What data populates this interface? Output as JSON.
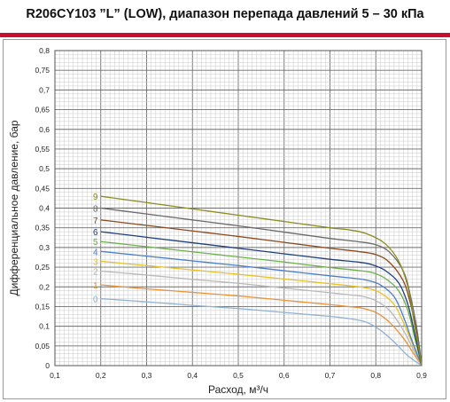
{
  "header": {
    "title": "R206CY103 ”L” (LOW), диапазон перепада давлений 5 – 30 кПа",
    "accent_color": "#c8102e"
  },
  "chart_data": {
    "type": "line",
    "title": "R206CY103 ”L” (LOW), диапазон перепада давлений 5 – 30 кПа",
    "xlabel": "Расход, м³/ч",
    "ylabel": "Дифференциальное давление, бар",
    "xlim": [
      0.1,
      0.9
    ],
    "ylim": [
      0,
      0.8
    ],
    "x_ticks": [
      "0,1",
      "0,2",
      "0,3",
      "0,4",
      "0,5",
      "0,6",
      "0,7",
      "0,8",
      "0,9"
    ],
    "y_ticks": [
      "0",
      "0,05",
      "0,1",
      "0,15",
      "0,2",
      "0,25",
      "0,3",
      "0,35",
      "0,4",
      "0,45",
      "0,5",
      "0,55",
      "0,6",
      "0,65",
      "0,7",
      "0,75",
      "0,8"
    ],
    "grid": true,
    "series": [
      {
        "name": "0",
        "color": "#8fb2d4",
        "x": [
          0.2,
          0.3,
          0.4,
          0.5,
          0.6,
          0.7,
          0.73,
          0.75,
          0.78,
          0.81,
          0.84,
          0.87,
          0.9
        ],
        "y": [
          0.17,
          0.162,
          0.153,
          0.145,
          0.135,
          0.125,
          0.121,
          0.118,
          0.11,
          0.09,
          0.06,
          0.025,
          0
        ]
      },
      {
        "name": "1",
        "color": "#e8923a",
        "x": [
          0.2,
          0.3,
          0.4,
          0.5,
          0.6,
          0.7,
          0.74,
          0.77,
          0.8,
          0.83,
          0.86,
          0.88,
          0.9
        ],
        "y": [
          0.205,
          0.195,
          0.186,
          0.177,
          0.166,
          0.155,
          0.15,
          0.146,
          0.135,
          0.11,
          0.07,
          0.035,
          0
        ]
      },
      {
        "name": "2",
        "color": "#b8b8b8",
        "x": [
          0.2,
          0.3,
          0.4,
          0.5,
          0.6,
          0.7,
          0.74,
          0.77,
          0.8,
          0.83,
          0.86,
          0.88,
          0.9
        ],
        "y": [
          0.24,
          0.23,
          0.219,
          0.209,
          0.197,
          0.185,
          0.18,
          0.176,
          0.165,
          0.14,
          0.09,
          0.045,
          0
        ]
      },
      {
        "name": "3",
        "color": "#e8c12a",
        "x": [
          0.2,
          0.3,
          0.4,
          0.5,
          0.6,
          0.7,
          0.75,
          0.78,
          0.81,
          0.84,
          0.86,
          0.88,
          0.9
        ],
        "y": [
          0.265,
          0.254,
          0.243,
          0.232,
          0.22,
          0.208,
          0.202,
          0.197,
          0.185,
          0.155,
          0.11,
          0.055,
          0
        ]
      },
      {
        "name": "4",
        "color": "#4a7ec9",
        "x": [
          0.2,
          0.3,
          0.4,
          0.5,
          0.6,
          0.7,
          0.75,
          0.78,
          0.81,
          0.84,
          0.86,
          0.88,
          0.9
        ],
        "y": [
          0.29,
          0.278,
          0.266,
          0.254,
          0.241,
          0.228,
          0.222,
          0.217,
          0.205,
          0.175,
          0.125,
          0.06,
          0
        ]
      },
      {
        "name": "5",
        "color": "#6cb04a",
        "x": [
          0.2,
          0.3,
          0.4,
          0.5,
          0.6,
          0.7,
          0.75,
          0.79,
          0.82,
          0.85,
          0.87,
          0.885,
          0.9
        ],
        "y": [
          0.315,
          0.302,
          0.289,
          0.276,
          0.263,
          0.249,
          0.243,
          0.237,
          0.222,
          0.19,
          0.14,
          0.07,
          0
        ]
      },
      {
        "name": "6",
        "color": "#1f3f7a",
        "x": [
          0.2,
          0.3,
          0.4,
          0.5,
          0.6,
          0.7,
          0.76,
          0.79,
          0.82,
          0.85,
          0.87,
          0.885,
          0.9
        ],
        "y": [
          0.34,
          0.326,
          0.312,
          0.298,
          0.284,
          0.27,
          0.263,
          0.257,
          0.242,
          0.21,
          0.155,
          0.08,
          0
        ]
      },
      {
        "name": "7",
        "color": "#8b4a20",
        "x": [
          0.2,
          0.3,
          0.4,
          0.5,
          0.6,
          0.7,
          0.76,
          0.8,
          0.83,
          0.86,
          0.875,
          0.89,
          0.9
        ],
        "y": [
          0.37,
          0.356,
          0.342,
          0.328,
          0.313,
          0.298,
          0.29,
          0.282,
          0.262,
          0.215,
          0.16,
          0.08,
          0
        ]
      },
      {
        "name": "8",
        "color": "#6b6b6b",
        "x": [
          0.2,
          0.3,
          0.4,
          0.5,
          0.6,
          0.7,
          0.76,
          0.8,
          0.83,
          0.86,
          0.875,
          0.89,
          0.9
        ],
        "y": [
          0.4,
          0.385,
          0.37,
          0.355,
          0.339,
          0.323,
          0.315,
          0.307,
          0.288,
          0.24,
          0.18,
          0.09,
          0
        ]
      },
      {
        "name": "9",
        "color": "#8c8c1e",
        "x": [
          0.2,
          0.3,
          0.4,
          0.5,
          0.6,
          0.7,
          0.74,
          0.78,
          0.82,
          0.85,
          0.87,
          0.885,
          0.9
        ],
        "y": [
          0.43,
          0.414,
          0.398,
          0.382,
          0.366,
          0.35,
          0.345,
          0.335,
          0.31,
          0.265,
          0.2,
          0.1,
          0
        ]
      }
    ]
  }
}
